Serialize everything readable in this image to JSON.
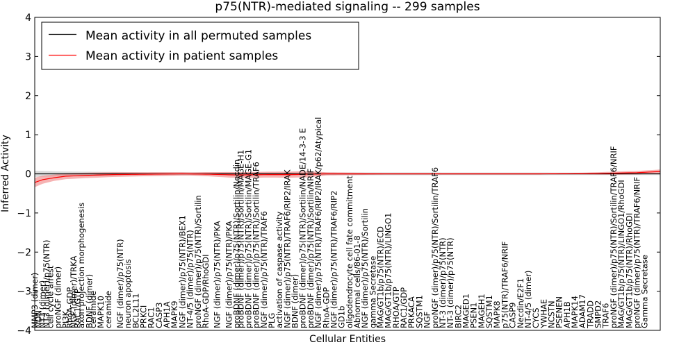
{
  "chart_data": {
    "type": "line",
    "title": "p75(NTR)-mediated signaling -- 299 samples",
    "xlabel": "Cellular Entities",
    "ylabel": "Inferred Activity",
    "ylim": [
      -4,
      4
    ],
    "yticks": [
      -4,
      -3,
      -2,
      -1,
      0,
      1,
      2,
      3,
      4
    ],
    "ytick_labels": [
      "−4",
      "−3",
      "−2",
      "−1",
      "0",
      "1",
      "2",
      "3",
      "4"
    ],
    "grid": false,
    "legend_position": "top-left",
    "legend": [
      {
        "label": "Mean activity in all permuted samples",
        "color": "#000000"
      },
      {
        "label": "Mean activity in patient samples",
        "color": "#ff0000"
      }
    ],
    "colors": {
      "permuted_line": "#000000",
      "permuted_band": "#c8c8c8",
      "patient_line": "#ff0000",
      "patient_band": "#f08080"
    },
    "n_entities": 162,
    "series": [
      {
        "name": "Mean activity in all permuted samples",
        "keypoints": [
          [
            0,
            0.0
          ],
          [
            161,
            0.0
          ]
        ],
        "band_halfwidth_keypoints": [
          [
            0,
            0.08
          ],
          [
            8,
            0.06
          ],
          [
            30,
            0.04
          ],
          [
            161,
            0.03
          ]
        ]
      },
      {
        "name": "Mean activity in patient samples",
        "keypoints": [
          [
            0,
            -0.22
          ],
          [
            2,
            -0.15
          ],
          [
            5,
            -0.1
          ],
          [
            8,
            -0.06
          ],
          [
            13,
            -0.04
          ],
          [
            20,
            -0.02
          ],
          [
            38,
            0.0
          ],
          [
            45,
            -0.01
          ],
          [
            52,
            -0.03
          ],
          [
            60,
            -0.02
          ],
          [
            66,
            -0.02
          ],
          [
            70,
            -0.01
          ],
          [
            75,
            0.0
          ],
          [
            80,
            0.0
          ],
          [
            90,
            0.0
          ],
          [
            100,
            0.0
          ],
          [
            115,
            0.0
          ],
          [
            130,
            0.0
          ],
          [
            145,
            0.01
          ],
          [
            155,
            0.03
          ],
          [
            161,
            0.06
          ]
        ],
        "band_halfwidth_keypoints": [
          [
            0,
            0.12
          ],
          [
            5,
            0.08
          ],
          [
            20,
            0.06
          ],
          [
            40,
            0.04
          ],
          [
            50,
            0.07
          ],
          [
            70,
            0.08
          ],
          [
            75,
            0.04
          ],
          [
            90,
            0.02
          ],
          [
            140,
            0.02
          ],
          [
            150,
            0.04
          ],
          [
            161,
            0.05
          ]
        ]
      }
    ],
    "x_labels": [
      {
        "i": 0,
        "label": "MMP3 (dimer)"
      },
      {
        "i": 1,
        "label": "NDN"
      },
      {
        "i": 2,
        "label": "NT3 (dimer)"
      },
      {
        "i": 3,
        "label": "NT3 (dimer)/p75(NTR)"
      },
      {
        "i": 4,
        "label": "cell cycle arrest"
      },
      {
        "i": 6,
        "label": "proNGF (dimer)"
      },
      {
        "i": 8,
        "label": "PI3K"
      },
      {
        "i": 9,
        "label": "RhoA-GDP"
      },
      {
        "i": 10,
        "label": "NGF (dimer)/TRKA"
      },
      {
        "i": 11,
        "label": "RAC1/GTP"
      },
      {
        "i": 12,
        "label": "axon projection morphogenesis"
      },
      {
        "i": 14,
        "label": "BDNF (dimer)"
      },
      {
        "i": 15,
        "label": "ceramide"
      },
      {
        "i": 17,
        "label": "MAPK10"
      },
      {
        "i": 19,
        "label": "ceramide"
      },
      {
        "i": 22,
        "label": "NGF (dimer)/p75(NTR)"
      },
      {
        "i": 24,
        "label": "neuron apoptosis"
      },
      {
        "i": 26,
        "label": "BCL2L11"
      },
      {
        "i": 28,
        "label": "PRKCI"
      },
      {
        "i": 30,
        "label": "RAC1"
      },
      {
        "i": 32,
        "label": "CASP3"
      },
      {
        "i": 34,
        "label": "APH1A"
      },
      {
        "i": 36,
        "label": "MAPK9"
      },
      {
        "i": 38,
        "label": "NGF (dimer)/p75(NTR)/BEX1"
      },
      {
        "i": 40,
        "label": "NT-4/5 (dimer)/p75(NTR)"
      },
      {
        "i": 42,
        "label": "proNGF (dimer)/p75(NTR)/Sortilin"
      },
      {
        "i": 44,
        "label": "RhoA-GDP/RhoGDI"
      },
      {
        "i": 47,
        "label": "NGF (dimer)/p75(NTR)/PKA"
      },
      {
        "i": 50,
        "label": "NGF (dimer)/p75(NTR)/PKA"
      },
      {
        "i": 52,
        "label": "proBDNF (dimer)/p75(NTR)/Sortilin/Necdin"
      },
      {
        "i": 53,
        "label": "proBDNF (dimer)/p75(NTR)/Sortilin/MAGE-H1"
      },
      {
        "i": 55,
        "label": "proBDNF (dimer)/p75(NTR)/Sortilin/MAGE-G1"
      },
      {
        "i": 57,
        "label": "proBDNF (dimer)/p75(NTR)/Sortilin/TRAF6"
      },
      {
        "i": 59,
        "label": "NGF (dimer)/p75(NTR)/TRAF6"
      },
      {
        "i": 61,
        "label": "PLG"
      },
      {
        "i": 63,
        "label": "activation of caspase activity"
      },
      {
        "i": 65,
        "label": "NGF (dimer)/p75(NTR)/TRAF6/RIP2/IRAK"
      },
      {
        "i": 67,
        "label": "BDNF (dimer)"
      },
      {
        "i": 69,
        "label": "proBDNF (dimer)/p75(NTR)/Sortilin/NADE/14-3-3 E"
      },
      {
        "i": 71,
        "label": "proBDNF (dimer)/p75(NTR)/Sortilin/NRIF"
      },
      {
        "i": 73,
        "label": "NGF (dimer)/p75(NTR)/TRAF6/RIP2/IRAK/p62/Atypical"
      },
      {
        "i": 75,
        "label": "RhoA-GDP"
      },
      {
        "i": 77,
        "label": "NGF (dimer)/p75(NTR)/TRAF6/RIP2"
      },
      {
        "i": 79,
        "label": "GD1b"
      },
      {
        "i": 81,
        "label": "oligodendrocyte cell fate commitment"
      },
      {
        "i": 83,
        "label": "Abnormal cells/86-01-8"
      },
      {
        "i": 85,
        "label": "NGF (dimer)/p75(NTR)/Sortilin"
      },
      {
        "i": 87,
        "label": "gamma Secretase"
      },
      {
        "i": 89,
        "label": "MAG/GT1b/p75(NTR)/ECD"
      },
      {
        "i": 91,
        "label": "MAG/GT1b/p75(NTR)/LINGO1"
      },
      {
        "i": 93,
        "label": "RHOA/GTP"
      },
      {
        "i": 95,
        "label": "RAC1/GDP"
      },
      {
        "i": 97,
        "label": "PRKACA"
      },
      {
        "i": 99,
        "label": "SQSTM1"
      },
      {
        "i": 101,
        "label": "NGF"
      },
      {
        "i": 103,
        "label": "proNGF (dimer)/p75(NTR)/Sortilin/TRAF6"
      },
      {
        "i": 105,
        "label": "NT-3 (dimer)/p75(NTR)"
      },
      {
        "i": 107,
        "label": "NT-3 (dimer)/p75(NTR)"
      },
      {
        "i": 109,
        "label": "BIRC2"
      },
      {
        "i": 111,
        "label": "MAGED1"
      },
      {
        "i": 113,
        "label": "PSEN1"
      },
      {
        "i": 115,
        "label": "MAGEH1"
      },
      {
        "i": 117,
        "label": "SQSTM1"
      },
      {
        "i": 119,
        "label": "MAPK8"
      },
      {
        "i": 121,
        "label": "p75(NTR)/TRAF6/NRIF"
      },
      {
        "i": 123,
        "label": "CASP9"
      },
      {
        "i": 125,
        "label": "Necdin/E2F1"
      },
      {
        "i": 127,
        "label": "NT-4/5 (dimer)"
      },
      {
        "i": 129,
        "label": "CYCS"
      },
      {
        "i": 131,
        "label": "YWHAE"
      },
      {
        "i": 133,
        "label": "NCSTN"
      },
      {
        "i": 135,
        "label": "PSENEN"
      },
      {
        "i": 137,
        "label": "APH1B"
      },
      {
        "i": 139,
        "label": "MAPK14"
      },
      {
        "i": 141,
        "label": "ADAM17"
      },
      {
        "i": 143,
        "label": "TRADD"
      },
      {
        "i": 145,
        "label": "SMPD2"
      },
      {
        "i": 147,
        "label": "TRAF6"
      },
      {
        "i": 149,
        "label": "proNGF (dimer)/p75(NTR)/Sortilin/TRAF6/NRIF"
      },
      {
        "i": 151,
        "label": "MAG/GT1b/p75(NTR)/LINGO1/RhoGDI"
      },
      {
        "i": 153,
        "label": "MAG/GT1b/p75(NTR)/RhoGDI"
      },
      {
        "i": 155,
        "label": "proNGF (dimer)/p75(NTR)/TRAF6/NRIF"
      },
      {
        "i": 157,
        "label": "Gamma Secretase"
      }
    ]
  }
}
